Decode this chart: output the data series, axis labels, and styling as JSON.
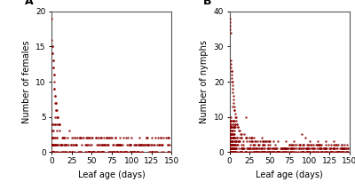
{
  "panel_A": {
    "label": "A",
    "ylabel": "Number of females",
    "xlabel": "Leaf age (days)",
    "xlim": [
      0,
      150
    ],
    "ylim": [
      0,
      20
    ],
    "xticks": [
      0,
      25,
      50,
      75,
      100,
      125,
      150
    ],
    "yticks": [
      0,
      5,
      10,
      15,
      20
    ],
    "dot_color": "#8B0000",
    "dot_size": 3,
    "dot_alpha": 0.85
  },
  "panel_B": {
    "label": "B",
    "ylabel": "Number of nymphs",
    "xlabel": "Leaf age (days)",
    "xlim": [
      0,
      150
    ],
    "ylim": [
      0,
      40
    ],
    "xticks": [
      0,
      25,
      50,
      75,
      100,
      125,
      150
    ],
    "yticks": [
      0,
      10,
      20,
      30,
      40
    ],
    "dot_color": "#8B0000",
    "dot_size": 3,
    "dot_alpha": 0.85
  },
  "figure_background": "#ffffff",
  "font_size_label": 7,
  "font_size_tick": 6.5
}
